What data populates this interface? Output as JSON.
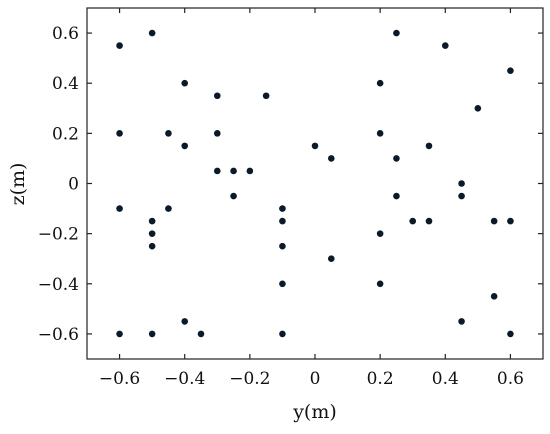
{
  "chart_data": {
    "type": "scatter",
    "title": "",
    "xlabel": "y(m)",
    "ylabel": "z(m)",
    "xlim": [
      -0.7,
      0.7
    ],
    "ylim": [
      -0.7,
      0.7
    ],
    "xticks": [
      -0.6,
      -0.4,
      -0.2,
      0,
      0.2,
      0.4,
      0.6
    ],
    "yticks": [
      -0.6,
      -0.4,
      -0.2,
      0,
      0.2,
      0.4,
      0.6
    ],
    "xtick_labels": [
      "−0.6",
      "−0.4",
      "−0.2",
      "0",
      "0.2",
      "0.4",
      "0.6"
    ],
    "ytick_labels": [
      "−0.6",
      "−0.4",
      "−0.2",
      "0",
      "0.2",
      "0.4",
      "0.6"
    ],
    "grid": false,
    "marker_color": "#0a1a2a",
    "points": [
      [
        -0.6,
        0.55
      ],
      [
        -0.5,
        0.6
      ],
      [
        -0.4,
        0.4
      ],
      [
        -0.3,
        0.35
      ],
      [
        -0.15,
        0.35
      ],
      [
        -0.6,
        0.2
      ],
      [
        -0.45,
        0.2
      ],
      [
        -0.3,
        0.2
      ],
      [
        -0.4,
        0.15
      ],
      [
        -0.3,
        0.05
      ],
      [
        -0.25,
        0.05
      ],
      [
        -0.2,
        0.05
      ],
      [
        -0.25,
        -0.05
      ],
      [
        -0.6,
        -0.1
      ],
      [
        -0.45,
        -0.1
      ],
      [
        -0.5,
        -0.15
      ],
      [
        -0.5,
        -0.2
      ],
      [
        -0.5,
        -0.25
      ],
      [
        -0.1,
        -0.1
      ],
      [
        -0.1,
        -0.15
      ],
      [
        -0.1,
        -0.25
      ],
      [
        -0.1,
        -0.4
      ],
      [
        -0.4,
        -0.55
      ],
      [
        -0.6,
        -0.6
      ],
      [
        -0.5,
        -0.6
      ],
      [
        -0.35,
        -0.6
      ],
      [
        -0.1,
        -0.6
      ],
      [
        0,
        0.15
      ],
      [
        0.05,
        0.1
      ],
      [
        0.05,
        -0.3
      ],
      [
        0.25,
        0.6
      ],
      [
        0.4,
        0.55
      ],
      [
        0.6,
        0.45
      ],
      [
        0.2,
        0.4
      ],
      [
        0.5,
        0.3
      ],
      [
        0.2,
        0.2
      ],
      [
        0.25,
        0.1
      ],
      [
        0.35,
        0.15
      ],
      [
        0.45,
        0
      ],
      [
        0.45,
        -0.05
      ],
      [
        0.25,
        -0.05
      ],
      [
        0.2,
        -0.2
      ],
      [
        0.3,
        -0.15
      ],
      [
        0.35,
        -0.15
      ],
      [
        0.55,
        -0.15
      ],
      [
        0.6,
        -0.15
      ],
      [
        0.2,
        -0.4
      ],
      [
        0.55,
        -0.45
      ],
      [
        0.45,
        -0.55
      ],
      [
        0.6,
        -0.6
      ]
    ]
  }
}
